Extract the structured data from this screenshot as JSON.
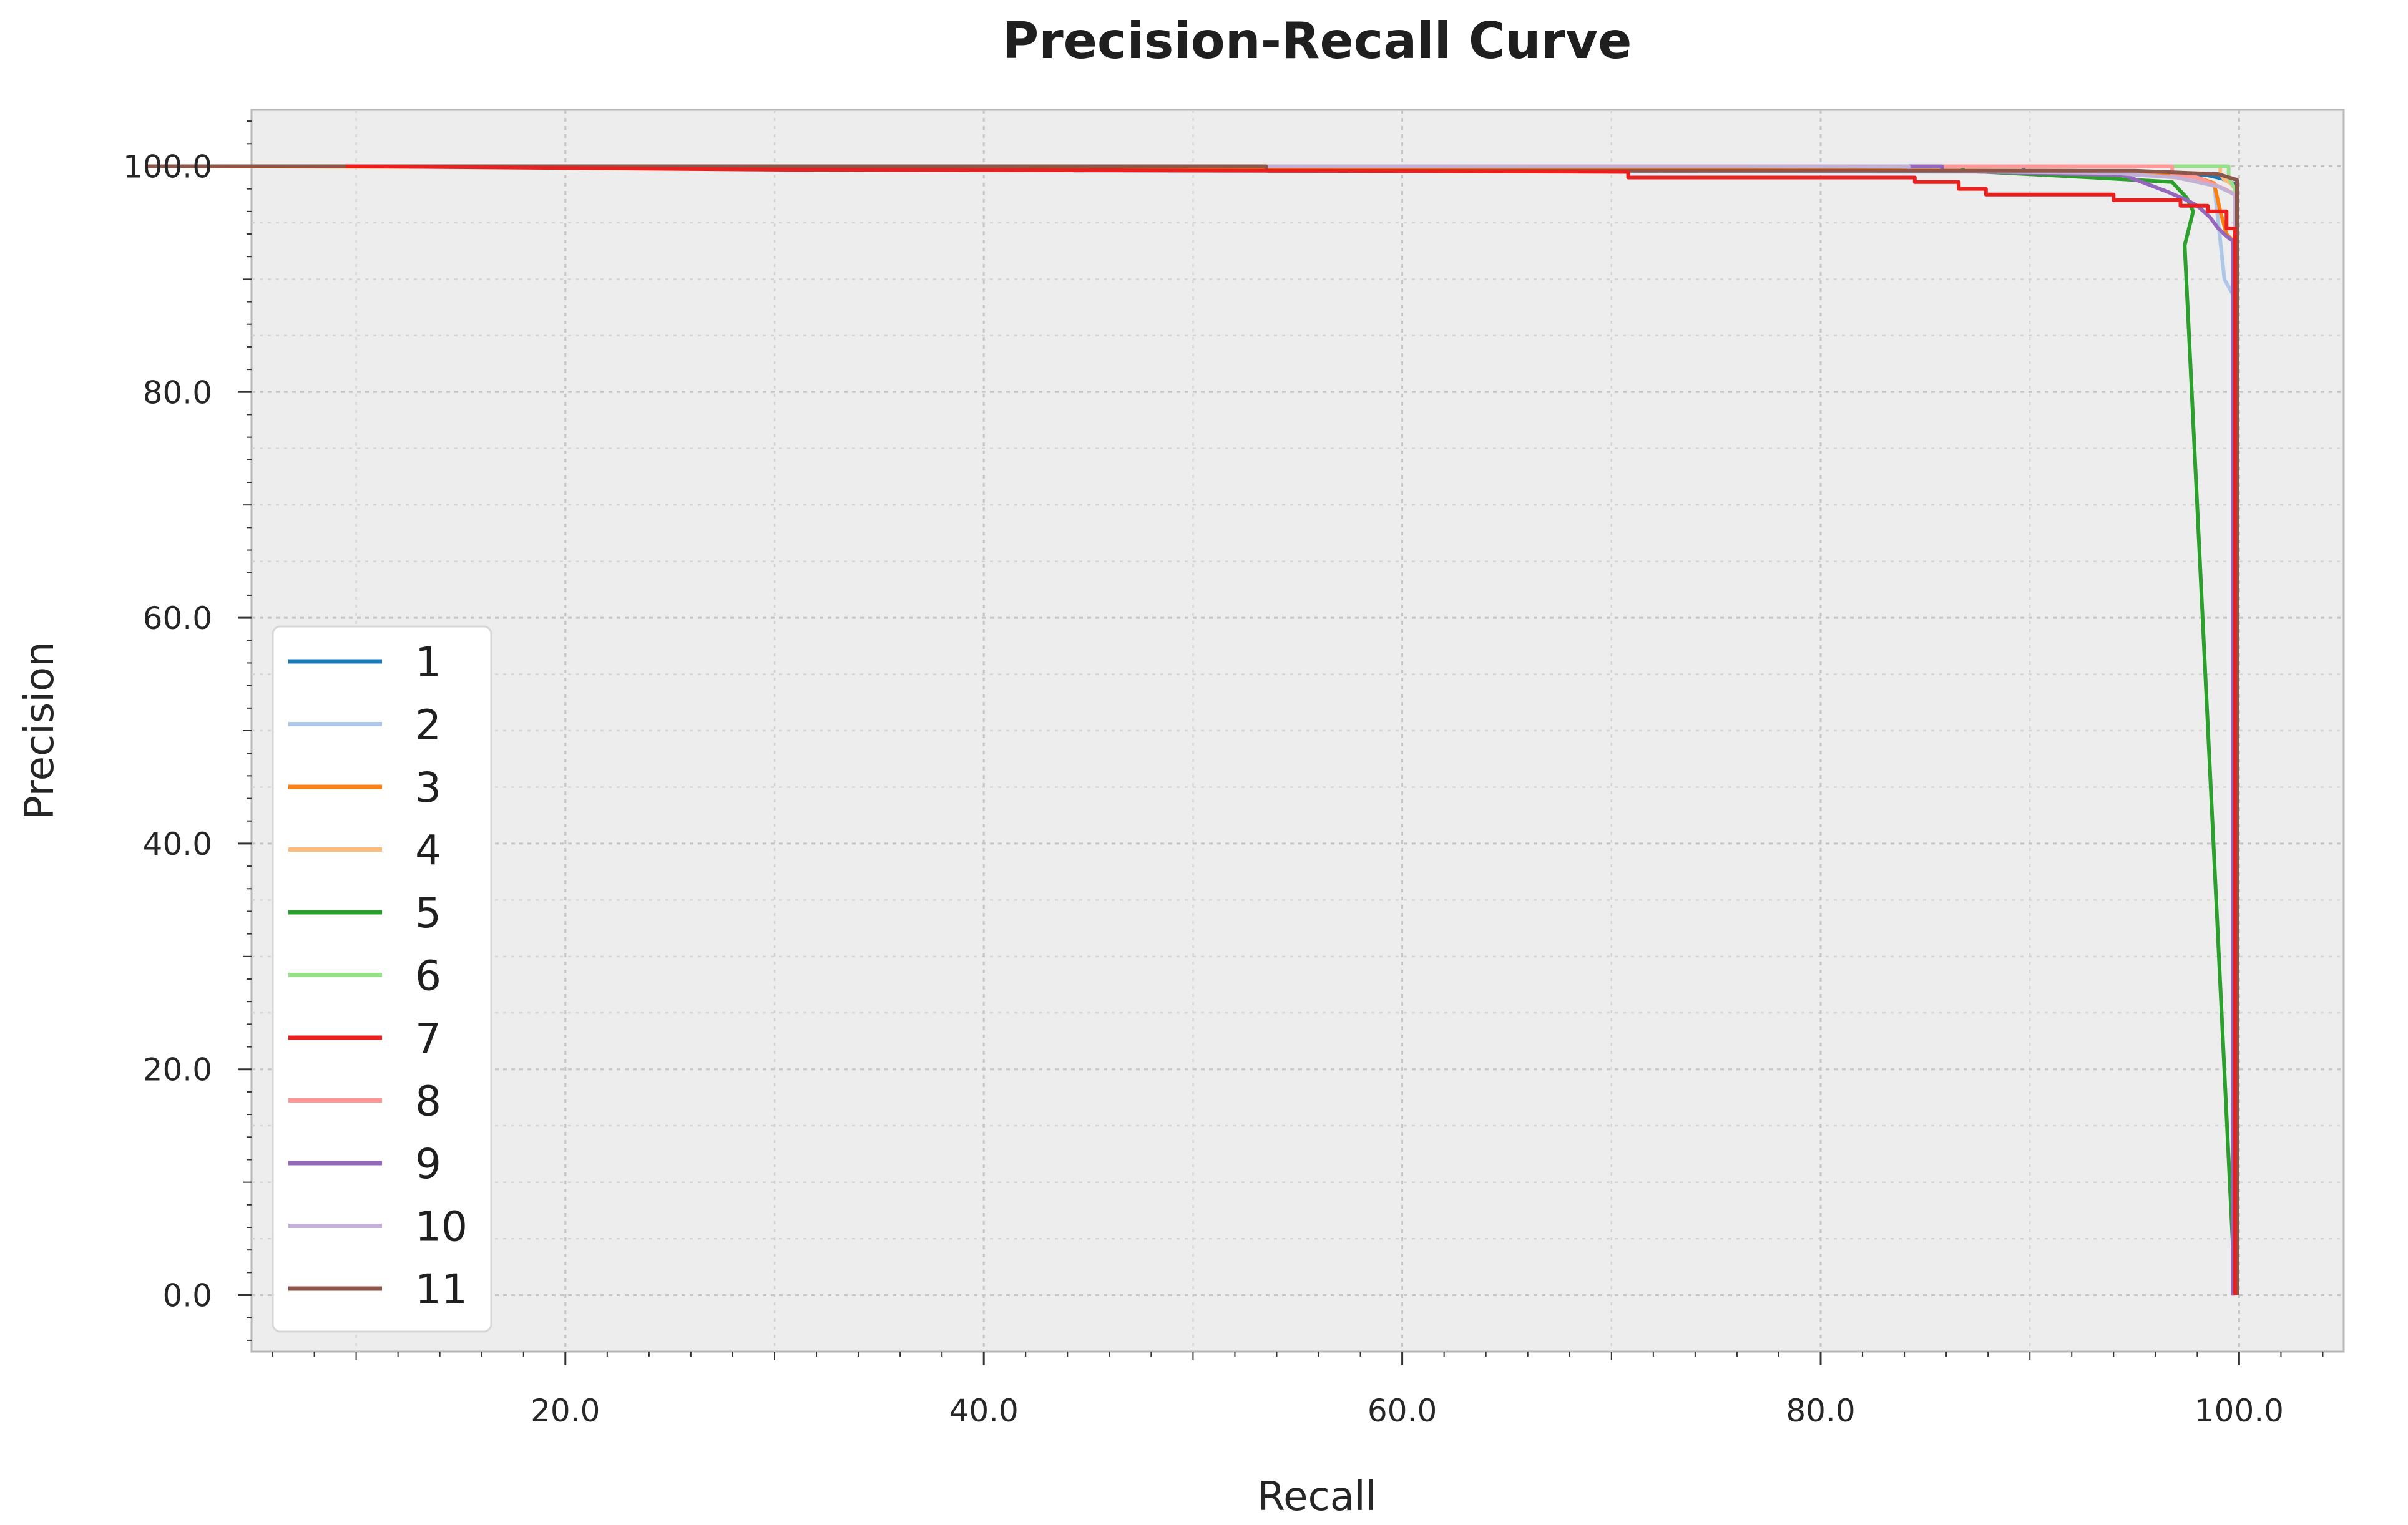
{
  "chart_data": {
    "type": "line",
    "title": "Precision-Recall Curve",
    "xlabel": "Recall",
    "ylabel": "Precision",
    "xlim": [
      5,
      105
    ],
    "ylim": [
      -5,
      105
    ],
    "x_ticks": [
      20,
      40,
      60,
      80,
      100
    ],
    "x_tick_labels": [
      "20.0",
      "40.0",
      "60.0",
      "80.0",
      "100.0"
    ],
    "y_ticks": [
      0,
      20,
      40,
      60,
      80,
      100
    ],
    "y_tick_labels": [
      "0.0",
      "20.0",
      "40.0",
      "60.0",
      "80.0",
      "100.0"
    ],
    "grid": true,
    "minor_grid": true,
    "legend_position": "center-left",
    "series": [
      {
        "name": "1",
        "color": "#1f77b4",
        "x": [
          0.0,
          89.7,
          89.7,
          95.0,
          98.5,
          99.2,
          99.5,
          99.9,
          99.9
        ],
        "y": [
          100.0,
          100.0,
          99.6,
          99.5,
          99.2,
          98.9,
          98.6,
          98.4,
          0.0
        ]
      },
      {
        "name": "2",
        "color": "#aec7e8",
        "x": [
          0.0,
          44.3,
          44.3,
          90.0,
          97.0,
          98.8,
          99.3,
          99.9,
          99.9
        ],
        "y": [
          100.0,
          100.0,
          99.6,
          99.5,
          99.1,
          98.5,
          90.0,
          88.0,
          0.0
        ]
      },
      {
        "name": "3",
        "color": "#ff7f0e",
        "x": [
          0.0,
          92.0,
          97.5,
          98.8,
          99.1,
          99.4,
          99.7,
          99.8,
          99.8
        ],
        "y": [
          100.0,
          99.6,
          99.3,
          98.5,
          96.0,
          94.0,
          93.4,
          93.4,
          0.0
        ]
      },
      {
        "name": "4",
        "color": "#ffbb78",
        "x": [
          0.0,
          99.1,
          99.1,
          99.3,
          99.6,
          99.8,
          99.8
        ],
        "y": [
          100.0,
          100.0,
          99.3,
          98.8,
          98.5,
          98.0,
          0.0
        ]
      },
      {
        "name": "5",
        "color": "#2ca02c",
        "x": [
          0.0,
          86.8,
          86.8,
          93.0,
          96.8,
          97.2,
          97.5,
          97.8,
          97.4,
          99.8,
          99.8
        ],
        "y": [
          100.0,
          100.0,
          99.6,
          99.0,
          98.6,
          97.8,
          97.2,
          96.0,
          93.0,
          0.5,
          0.0
        ]
      },
      {
        "name": "6",
        "color": "#98df8a",
        "x": [
          0.0,
          99.5,
          99.5,
          99.8,
          99.8
        ],
        "y": [
          100.0,
          100.0,
          99.0,
          98.0,
          0.0
        ]
      },
      {
        "name": "7",
        "color": "#e8201f",
        "x": [
          9.5,
          30.0,
          55.0,
          70.8,
          70.8,
          84.5,
          84.5,
          86.6,
          86.6,
          87.9,
          87.9,
          88.6,
          88.6,
          94.0,
          94.0,
          97.2,
          97.2,
          98.5,
          98.5,
          99.4,
          99.4,
          99.8,
          99.8
        ],
        "y": [
          100.0,
          99.7,
          99.6,
          99.5,
          99.0,
          99.0,
          98.6,
          98.6,
          98.0,
          98.0,
          97.5,
          97.5,
          97.5,
          97.5,
          97.0,
          97.0,
          96.5,
          96.5,
          96.0,
          96.0,
          94.5,
          94.5,
          0.0
        ]
      },
      {
        "name": "8",
        "color": "#ff9896",
        "x": [
          0.0,
          96.8,
          96.8,
          98.0,
          99.3,
          99.8,
          99.8
        ],
        "y": [
          100.0,
          100.0,
          99.3,
          99.0,
          98.0,
          97.5,
          0.0
        ]
      },
      {
        "name": "9",
        "color": "#9467bd",
        "x": [
          0.0,
          85.8,
          85.8,
          94.5,
          95.5,
          96.5,
          97.5,
          98.0,
          98.6,
          99.0,
          99.4,
          99.7,
          99.7
        ],
        "y": [
          100.0,
          100.0,
          99.6,
          99.2,
          98.5,
          97.8,
          97.0,
          96.5,
          95.5,
          94.5,
          93.8,
          93.4,
          0.0
        ]
      },
      {
        "name": "10",
        "color": "#c5b0d5",
        "x": [
          0.0,
          84.2,
          84.2,
          94.0,
          97.0,
          99.0,
          99.8,
          99.8
        ],
        "y": [
          100.0,
          100.0,
          99.6,
          99.4,
          99.0,
          98.2,
          97.5,
          0.0
        ]
      },
      {
        "name": "11",
        "color": "#8c564b",
        "x": [
          0.0,
          53.5,
          53.5,
          95.0,
          99.0,
          99.9,
          99.9
        ],
        "y": [
          100.0,
          100.0,
          99.6,
          99.6,
          99.3,
          98.8,
          0.0
        ]
      }
    ]
  }
}
